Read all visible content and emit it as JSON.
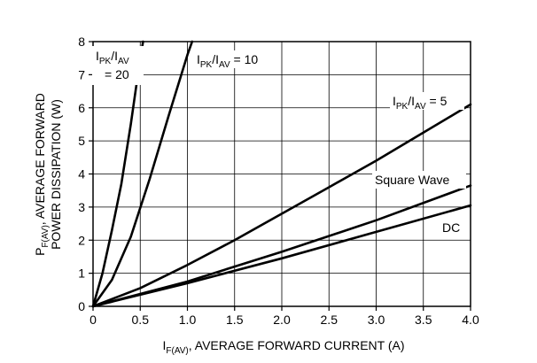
{
  "chart_data": {
    "type": "line",
    "title": "",
    "xlabel": {
      "main": "I",
      "sub": "F(AV)",
      "rest": ", AVERAGE FORWARD CURRENT (A)"
    },
    "ylabel": {
      "line1_main": "P",
      "line1_sub": "F(AV)",
      "line1_rest": ", AVERAGE FORWARD",
      "line2": "POWER DISSIPATION (W)"
    },
    "xlim": [
      0,
      4.0
    ],
    "ylim": [
      0,
      8
    ],
    "grid": true,
    "x_ticks": [
      {
        "value": 0,
        "label": "0"
      },
      {
        "value": 0.5,
        "label": "0.5"
      },
      {
        "value": 1.0,
        "label": "1.0"
      },
      {
        "value": 1.5,
        "label": "1.5"
      },
      {
        "value": 2.0,
        "label": "2.0"
      },
      {
        "value": 2.5,
        "label": "2.5"
      },
      {
        "value": 3.0,
        "label": "3.0"
      },
      {
        "value": 3.5,
        "label": "3.5"
      },
      {
        "value": 4.0,
        "label": "4.0"
      }
    ],
    "y_ticks": [
      {
        "value": 0,
        "label": "0"
      },
      {
        "value": 1,
        "label": "1"
      },
      {
        "value": 2,
        "label": "2"
      },
      {
        "value": 3,
        "label": "3"
      },
      {
        "value": 4,
        "label": "4"
      },
      {
        "value": 5,
        "label": "5"
      },
      {
        "value": 6,
        "label": "6"
      },
      {
        "value": 7,
        "label": "7"
      },
      {
        "value": 8,
        "label": "8"
      }
    ],
    "series": [
      {
        "name": "I_PK/I_AV = 20",
        "x": [
          0,
          0.1,
          0.2,
          0.3,
          0.4,
          0.5,
          0.53
        ],
        "y": [
          0,
          1.0,
          2.3,
          3.7,
          5.5,
          7.5,
          8.0
        ]
      },
      {
        "name": "I_PK/I_AV = 10",
        "x": [
          0,
          0.2,
          0.4,
          0.6,
          0.8,
          1.0,
          1.05
        ],
        "y": [
          0,
          0.8,
          2.1,
          3.85,
          5.75,
          7.6,
          8.0
        ]
      },
      {
        "name": "I_PK/I_AV = 5",
        "x": [
          0,
          0.5,
          1.0,
          1.5,
          2.0,
          2.5,
          3.0,
          3.5,
          4.0
        ],
        "y": [
          0,
          0.55,
          1.25,
          2.0,
          2.8,
          3.6,
          4.4,
          5.25,
          6.1
        ]
      },
      {
        "name": "Square Wave",
        "x": [
          0,
          1.0,
          2.0,
          3.0,
          4.0
        ],
        "y": [
          0,
          0.75,
          1.65,
          2.6,
          3.65
        ]
      },
      {
        "name": "DC",
        "x": [
          0,
          1.0,
          2.0,
          3.0,
          4.0
        ],
        "y": [
          0,
          0.7,
          1.45,
          2.25,
          3.05
        ]
      }
    ],
    "annotations": [
      {
        "id": "ratio20",
        "prefix_main": "I",
        "prefix_sub": "PK",
        "mid": "/I",
        "mid_sub": "AV",
        "line2": "= 20"
      },
      {
        "id": "ratio10",
        "prefix_main": "I",
        "prefix_sub": "PK",
        "mid": "/I",
        "mid_sub": "AV",
        "rest": " = 10"
      },
      {
        "id": "ratio5",
        "prefix_main": "I",
        "prefix_sub": "PK",
        "mid": "/I",
        "mid_sub": "AV",
        "rest": " = 5"
      },
      {
        "id": "square",
        "text": "Square Wave"
      },
      {
        "id": "dc",
        "text": "DC"
      }
    ]
  }
}
